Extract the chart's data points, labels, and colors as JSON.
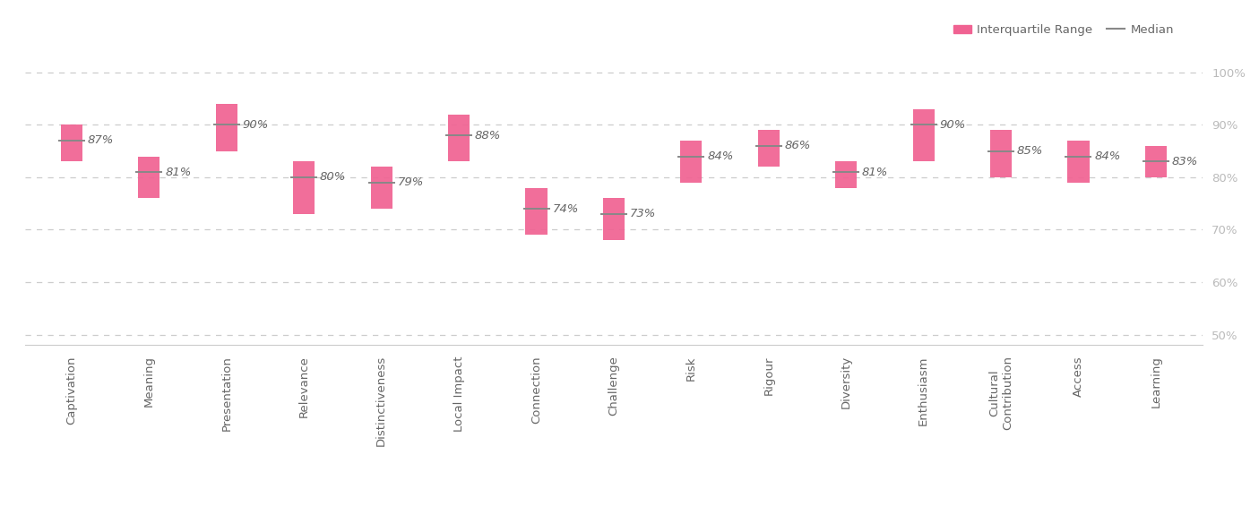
{
  "categories": [
    "Captivation",
    "Meaning",
    "Presentation",
    "Relevance",
    "Distinctiveness",
    "Local Impact",
    "Connection",
    "Challenge",
    "Risk",
    "Rigour",
    "Diversity",
    "Enthusiasm",
    "Cultural\nContribution",
    "Access",
    "Learning"
  ],
  "medians": [
    0.87,
    0.81,
    0.9,
    0.8,
    0.79,
    0.88,
    0.74,
    0.73,
    0.84,
    0.86,
    0.81,
    0.9,
    0.85,
    0.84,
    0.83
  ],
  "q1": [
    0.83,
    0.76,
    0.85,
    0.73,
    0.74,
    0.83,
    0.69,
    0.68,
    0.79,
    0.82,
    0.78,
    0.83,
    0.8,
    0.79,
    0.8
  ],
  "q3": [
    0.9,
    0.84,
    0.94,
    0.83,
    0.82,
    0.92,
    0.78,
    0.76,
    0.87,
    0.89,
    0.83,
    0.93,
    0.89,
    0.87,
    0.86
  ],
  "bar_color": "#f06292",
  "median_color": "#888888",
  "grid_color": "#cccccc",
  "label_color": "#bbbbbb",
  "text_color": "#666666",
  "background_color": "#ffffff",
  "yticks": [
    0.5,
    0.6,
    0.7,
    0.8,
    0.9,
    1.0
  ],
  "ytick_labels": [
    "50%",
    "60%",
    "70%",
    "80%",
    "90%",
    "100%"
  ],
  "ylim": [
    0.48,
    1.04
  ],
  "bar_width": 0.28,
  "figsize": [
    14.05,
    5.75
  ],
  "dpi": 100
}
